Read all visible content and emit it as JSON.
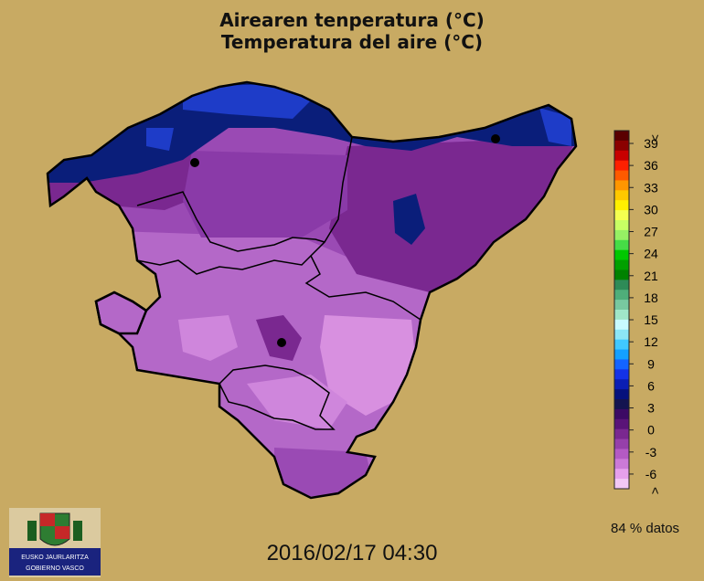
{
  "title_line1": "Airearen tenperatura (°C)",
  "title_line2": "Temperatura del aire (°C)",
  "timestamp": "2016/02/17 04:30",
  "coverage": "84 % datos",
  "logo_text": [
    "EUSKO JAURLARITZA",
    "GOBIERNO VASCO"
  ],
  "scale": {
    "top_label": ">",
    "bottom_label": "<",
    "ticks": [
      "39",
      "36",
      "33",
      "30",
      "27",
      "24",
      "21",
      "18",
      "15",
      "12",
      "9",
      "6",
      "3",
      "0",
      "-3",
      "-6"
    ],
    "colors": [
      "#5a0000",
      "#8b0000",
      "#c80000",
      "#ff2000",
      "#ff5a00",
      "#ff9600",
      "#ffc800",
      "#fff000",
      "#f5ff50",
      "#c8ff64",
      "#96f064",
      "#46dc46",
      "#00c800",
      "#00a000",
      "#008200",
      "#2e8b57",
      "#4fae7a",
      "#78c8a0",
      "#a0e6c8",
      "#c8faff",
      "#8ce6f5",
      "#40c8ff",
      "#14a0ff",
      "#1464ff",
      "#1432e6",
      "#0a1eb4",
      "#06117c",
      "#141450",
      "#3c0a64",
      "#5a1478",
      "#7a2890",
      "#9640aa",
      "#b45ac4",
      "#cc7ad8",
      "#e6a0ec",
      "#f2c8f5"
    ]
  },
  "colors": {
    "background": "#c8aa63",
    "coast_cold": "#0a1e7a",
    "coast_blue": "#1e3cc8",
    "purple_dark": "#6a1a8a",
    "purple_mid": "#8a3aa8",
    "purple_light": "#b468c8",
    "purple_pale": "#d890e0"
  }
}
